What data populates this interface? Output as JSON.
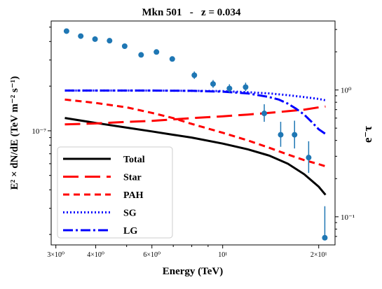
{
  "chart_data": {
    "type": "line",
    "title": "Mkn 501   -   z = 0.034",
    "xlabel": "Energy (TeV)",
    "ylabel_left": "E² × dN/dE (TeV m⁻² s⁻¹)",
    "ylabel_right": "e⁻τ",
    "x_scale": "log",
    "xlim": [
      2.9,
      22.5
    ],
    "x_ticks": [
      {
        "value": 3,
        "label": "3×10⁰"
      },
      {
        "value": 4,
        "label": "4×10⁰"
      },
      {
        "value": 6,
        "label": "6×10⁰"
      },
      {
        "value": 10,
        "label": "10¹"
      },
      {
        "value": 20,
        "label": "2×10¹"
      }
    ],
    "left_axis": {
      "scale": "log",
      "ylim": [
        1.7e-08,
        5.5e-07
      ],
      "ticks": [
        {
          "value": 1e-07,
          "label": "10⁻⁷"
        }
      ]
    },
    "right_axis": {
      "scale": "log",
      "ylim": [
        0.06,
        3.5
      ],
      "ticks": [
        {
          "value": 1.0,
          "label": "10⁰"
        },
        {
          "value": 0.1,
          "label": "10⁻¹"
        }
      ]
    },
    "observed_points": {
      "axis": "left",
      "color": "#1f77b4",
      "x": [
        3.24,
        3.59,
        3.98,
        4.42,
        4.93,
        5.55,
        6.2,
        6.95,
        8.15,
        9.33,
        10.5,
        11.8,
        13.5,
        15.2,
        16.8,
        18.6,
        20.9
      ],
      "y": [
        4.7e-07,
        4.35e-07,
        4.15e-07,
        4.05e-07,
        3.72e-07,
        3.25e-07,
        3.4e-07,
        3.05e-07,
        2.37e-07,
        2.07e-07,
        1.93e-07,
        1.97e-07,
        1.31e-07,
        9.4e-08,
        9.4e-08,
        6.6e-08,
        1.9e-08
      ],
      "yerr_low": [
        0,
        0,
        0,
        0,
        0,
        0,
        0,
        0,
        1.3e-08,
        1.2e-08,
        1.2e-08,
        1.2e-08,
        1.6e-08,
        1.6e-08,
        1.8e-08,
        1.4e-08,
        5e-10
      ],
      "yerr_high": [
        0,
        0,
        0,
        0,
        0,
        0,
        0,
        0,
        1.4e-08,
        1.3e-08,
        1.3e-08,
        1.4e-08,
        2e-08,
        2.1e-08,
        2.3e-08,
        1.9e-08,
        1.2e-08
      ]
    },
    "series": [
      {
        "name": "Total",
        "axis": "left",
        "color": "#000000",
        "style": "solid",
        "x": [
          3.2,
          4,
          5,
          6,
          7,
          8,
          10,
          12,
          14,
          16,
          18,
          20,
          21
        ],
        "y": [
          1.22e-07,
          1.13e-07,
          1.05e-07,
          9.9e-08,
          9.4e-08,
          9e-08,
          8.2e-08,
          7.5e-08,
          6.8e-08,
          6e-08,
          5.1e-08,
          4.2e-08,
          3.7e-08
        ]
      },
      {
        "name": "Star",
        "axis": "right",
        "color": "#ff0000",
        "style": "longdash",
        "x": [
          3.2,
          4,
          5,
          6,
          8,
          10,
          12,
          14,
          16,
          18,
          20,
          21
        ],
        "y": [
          0.535,
          0.545,
          0.56,
          0.57,
          0.6,
          0.62,
          0.64,
          0.66,
          0.68,
          0.7,
          0.73,
          0.74
        ]
      },
      {
        "name": "PAH",
        "axis": "right",
        "color": "#ff0000",
        "style": "dashed",
        "x": [
          3.2,
          4,
          5,
          6,
          7,
          8,
          10,
          12,
          14,
          16,
          18,
          20,
          21
        ],
        "y": [
          0.84,
          0.79,
          0.73,
          0.66,
          0.6,
          0.54,
          0.46,
          0.4,
          0.35,
          0.31,
          0.28,
          0.26,
          0.25
        ]
      },
      {
        "name": "SG",
        "axis": "right",
        "color": "#0000ff",
        "style": "dotted",
        "x": [
          3.2,
          4,
          5,
          6,
          8,
          10,
          12,
          14,
          16,
          18,
          20,
          21
        ],
        "y": [
          0.99,
          0.99,
          0.99,
          0.99,
          0.985,
          0.98,
          0.96,
          0.94,
          0.91,
          0.88,
          0.85,
          0.83
        ]
      },
      {
        "name": "LG",
        "axis": "right",
        "color": "#0000ff",
        "style": "dashdot",
        "x": [
          3.2,
          4,
          5,
          6,
          8,
          10,
          12,
          14,
          15,
          16,
          17,
          18,
          19,
          20,
          21
        ],
        "y": [
          0.99,
          0.99,
          0.99,
          0.99,
          0.985,
          0.97,
          0.94,
          0.88,
          0.84,
          0.78,
          0.71,
          0.64,
          0.56,
          0.49,
          0.45
        ]
      }
    ],
    "legend": {
      "position": "lower-left",
      "entries": [
        "Total",
        "Star",
        "PAH",
        "SG",
        "LG"
      ]
    }
  }
}
